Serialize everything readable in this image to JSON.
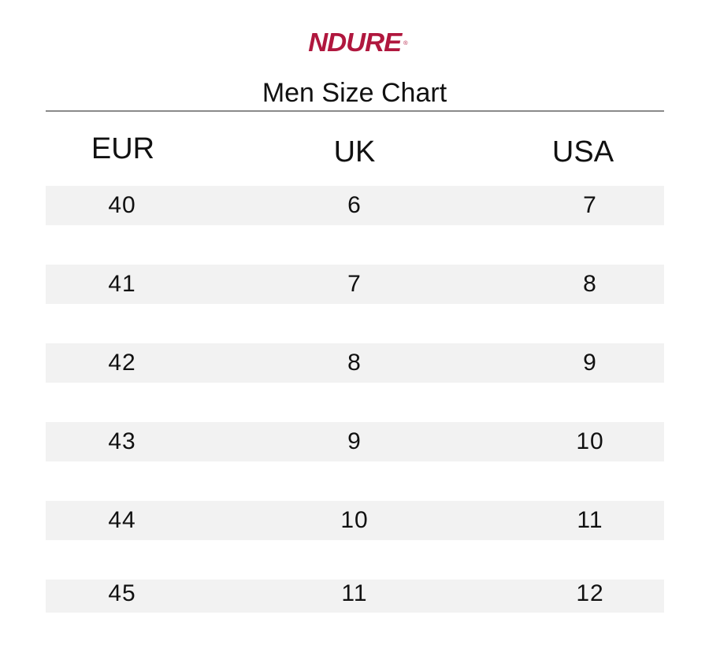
{
  "brand": {
    "logo_text": "NDURE",
    "logo_reg": "®",
    "color": "#b0173e"
  },
  "title": "Men Size Chart",
  "table": {
    "headers": [
      "EUR",
      "UK",
      "USA"
    ],
    "rows": [
      [
        "40",
        "6",
        "7"
      ],
      [
        "41",
        "7",
        "8"
      ],
      [
        "42",
        "8",
        "9"
      ],
      [
        "43",
        "9",
        "10"
      ],
      [
        "44",
        "10",
        "11"
      ],
      [
        "45",
        "11",
        "12"
      ]
    ]
  },
  "colors": {
    "row_band": "#f2f2f2",
    "rule": "#8a8a8a",
    "text": "#111111"
  }
}
